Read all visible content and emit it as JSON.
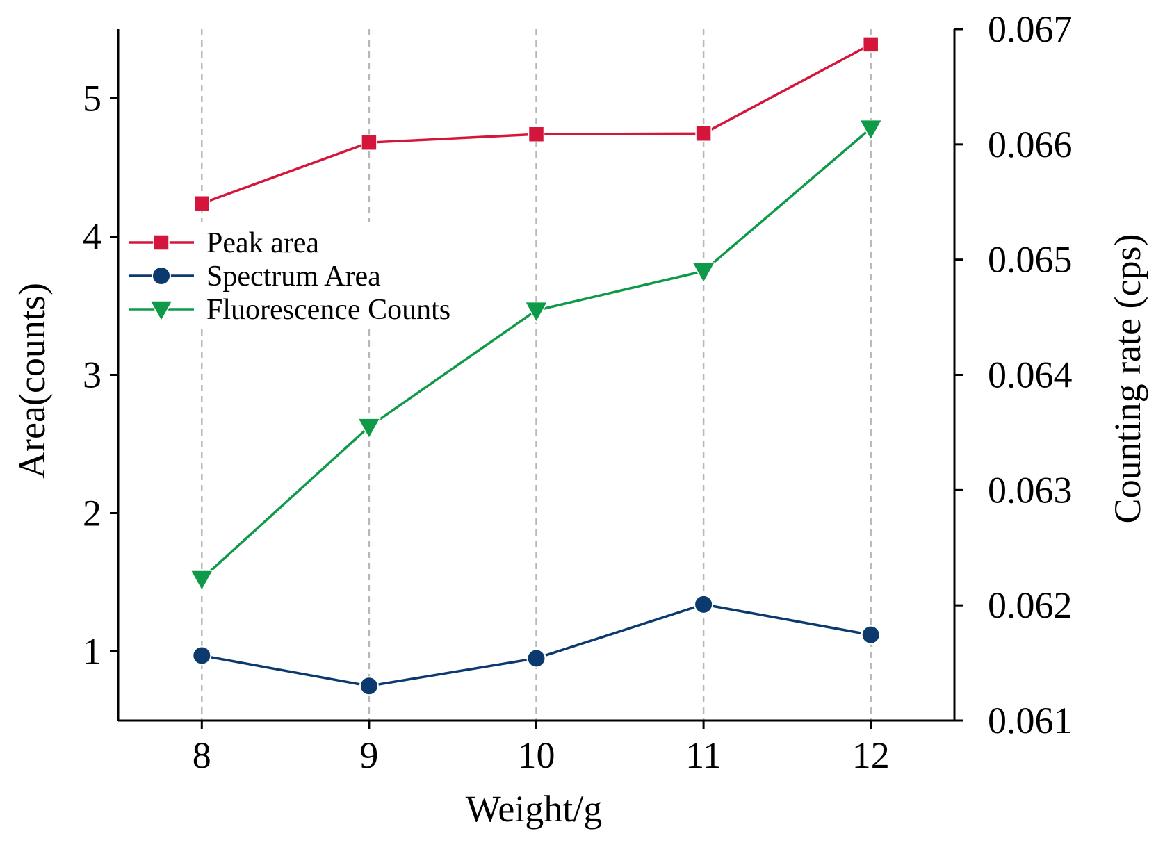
{
  "chart_data": {
    "type": "line",
    "x": [
      8,
      9,
      10,
      11,
      12
    ],
    "xlabel": "Weight/g",
    "ylabel": "Area(counts)",
    "ylabel_right": "Counting rate (cps)",
    "xlim": [
      7.5,
      12.5
    ],
    "ylim": [
      0.5,
      5.5
    ],
    "ylim_right": [
      0.061,
      0.067
    ],
    "xticks": [
      "8",
      "9",
      "10",
      "11",
      "12"
    ],
    "yticks": [
      "1",
      "2",
      "3",
      "4",
      "5"
    ],
    "yticks_right": [
      "0.061",
      "0.062",
      "0.063",
      "0.064",
      "0.065",
      "0.066",
      "0.067"
    ],
    "grid": "vertical dashed lines at x ticks",
    "legend_position": "upper-left",
    "series": [
      {
        "name": "Peak area",
        "axis": "left",
        "color": "#d4163c",
        "marker": "square",
        "values": [
          4.24,
          4.68,
          4.74,
          4.745,
          5.39
        ]
      },
      {
        "name": "Spectrum Area",
        "axis": "left",
        "color": "#0c3a6e",
        "marker": "circle",
        "values": [
          0.97,
          0.75,
          0.95,
          1.34,
          1.12
        ]
      },
      {
        "name": "Fluorescence Counts",
        "axis": "right",
        "color": "#0e9a48",
        "marker": "triangle-down",
        "values": [
          0.06223,
          0.06355,
          0.06456,
          0.0649,
          0.06614
        ]
      }
    ]
  }
}
